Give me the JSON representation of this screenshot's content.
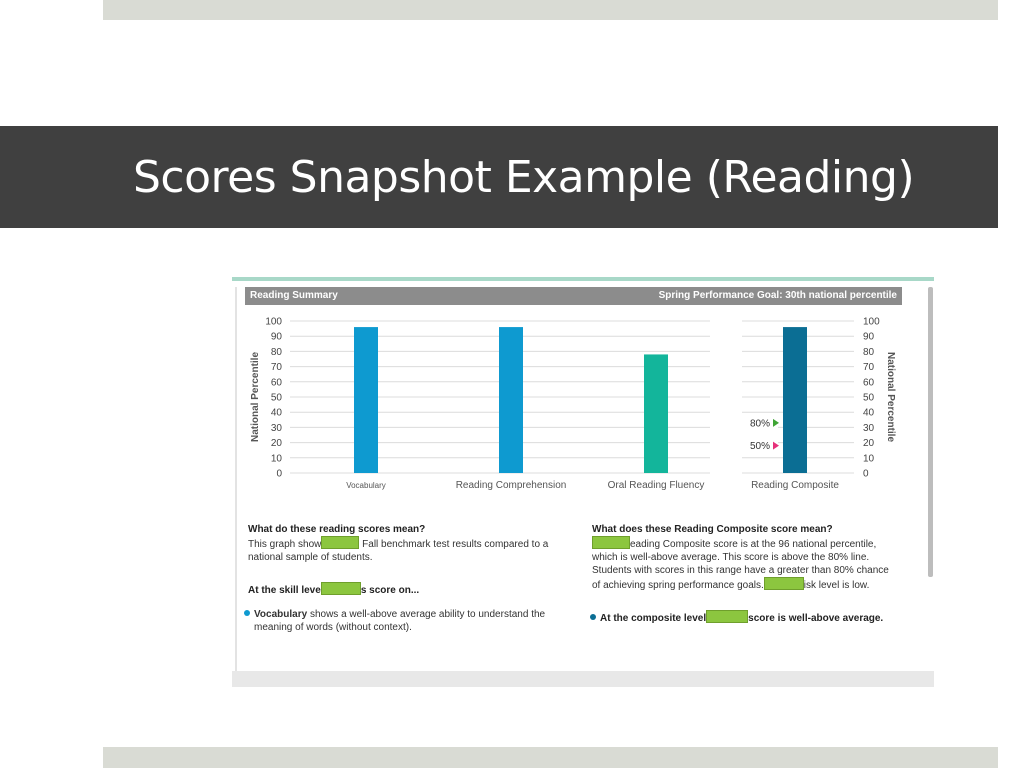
{
  "slide": {
    "title": "Scores Snapshot Example (Reading)"
  },
  "report": {
    "header_left": "Reading Summary",
    "header_right": "Spring Performance Goal: 30th national percentile"
  },
  "chart_data": {
    "type": "bar",
    "title": "",
    "ylabel": "National Percentile",
    "ylabel_right": "National Percentile",
    "ylim": [
      0,
      100
    ],
    "yticks": [
      "100",
      "90",
      "80",
      "70",
      "60",
      "50",
      "40",
      "30",
      "20",
      "10",
      "0"
    ],
    "categories": [
      "Vocabulary",
      "Reading Comprehension",
      "Oral Reading Fluency",
      "Reading Composite"
    ],
    "values": [
      96,
      96,
      78,
      96
    ],
    "colors": [
      "#0e9ad0",
      "#0e9ad0",
      "#13b59b",
      "#0b6e94"
    ],
    "grid": true,
    "markers": [
      {
        "label": "80%",
        "value": 33,
        "color": "#3fa535"
      },
      {
        "label": "50%",
        "value": 18,
        "color": "#e6317a"
      }
    ]
  },
  "info": {
    "left_title": "What do these reading scores mean?",
    "left_body_a": "This graph show",
    "left_body_b": " Fall benchmark test results compared to a",
    "left_body_c": "national sample of students.",
    "skill_a": "At the skill leve",
    "skill_b": "s score on...",
    "bullet_left_bold": "Vocabulary",
    "bullet_left_text": " shows a well-above average ability to understand the",
    "bullet_left_text2": "meaning of words (without context).",
    "right_title": "What does these Reading Composite score mean?",
    "right_line1": "eading Composite score is at the 96 national percentile,",
    "right_line2": "which is well-above average. This score is above the 80% line.",
    "right_line3": "Students with scores in this range have a greater than 80% chance",
    "right_line4a": "of achieving spring performance goals.",
    "right_line4b": "isk level is low.",
    "bullet_right_a": "At the composite level",
    "bullet_right_b": "score is well-above average."
  },
  "colors": {
    "title_bar": "#404040",
    "highlight": "#8cc63f",
    "bullet_left": "#0e9ad0",
    "bullet_right": "#0b6e94"
  }
}
